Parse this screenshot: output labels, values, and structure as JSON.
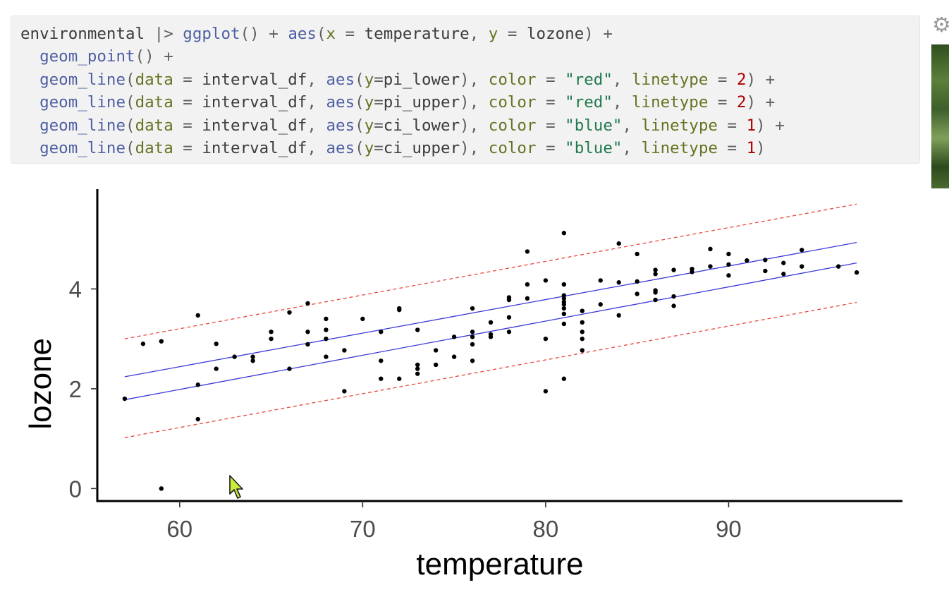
{
  "code": {
    "lines": [
      [
        [
          "environmental",
          "id"
        ],
        [
          " |> ",
          "op"
        ],
        [
          "ggplot",
          "fn"
        ],
        [
          "() + ",
          "op"
        ],
        [
          "aes",
          "fn"
        ],
        [
          "(",
          "op"
        ],
        [
          "x",
          "arg"
        ],
        [
          " = ",
          "op"
        ],
        [
          "temperature",
          "id"
        ],
        [
          ", ",
          "op"
        ],
        [
          "y",
          "arg"
        ],
        [
          " = ",
          "op"
        ],
        [
          "lozone",
          "id"
        ],
        [
          ") +",
          "op"
        ]
      ],
      [
        [
          "  ",
          "id"
        ],
        [
          "geom_point",
          "fn"
        ],
        [
          "() +",
          "op"
        ]
      ],
      [
        [
          "  ",
          "id"
        ],
        [
          "geom_line",
          "fn"
        ],
        [
          "(",
          "op"
        ],
        [
          "data",
          "arg"
        ],
        [
          " = ",
          "op"
        ],
        [
          "interval_df",
          "id"
        ],
        [
          ", ",
          "op"
        ],
        [
          "aes",
          "fn"
        ],
        [
          "(",
          "op"
        ],
        [
          "y",
          "arg"
        ],
        [
          "=",
          "op"
        ],
        [
          "pi_lower",
          "id"
        ],
        [
          "), ",
          "op"
        ],
        [
          "color",
          "arg"
        ],
        [
          " = ",
          "op"
        ],
        [
          "\"red\"",
          "str"
        ],
        [
          ", ",
          "op"
        ],
        [
          "linetype",
          "arg"
        ],
        [
          " = ",
          "op"
        ],
        [
          "2",
          "num"
        ],
        [
          ") +",
          "op"
        ]
      ],
      [
        [
          "  ",
          "id"
        ],
        [
          "geom_line",
          "fn"
        ],
        [
          "(",
          "op"
        ],
        [
          "data",
          "arg"
        ],
        [
          " = ",
          "op"
        ],
        [
          "interval_df",
          "id"
        ],
        [
          ", ",
          "op"
        ],
        [
          "aes",
          "fn"
        ],
        [
          "(",
          "op"
        ],
        [
          "y",
          "arg"
        ],
        [
          "=",
          "op"
        ],
        [
          "pi_upper",
          "id"
        ],
        [
          "), ",
          "op"
        ],
        [
          "color",
          "arg"
        ],
        [
          " = ",
          "op"
        ],
        [
          "\"red\"",
          "str"
        ],
        [
          ", ",
          "op"
        ],
        [
          "linetype",
          "arg"
        ],
        [
          " = ",
          "op"
        ],
        [
          "2",
          "num"
        ],
        [
          ") +",
          "op"
        ]
      ],
      [
        [
          "  ",
          "id"
        ],
        [
          "geom_line",
          "fn"
        ],
        [
          "(",
          "op"
        ],
        [
          "data",
          "arg"
        ],
        [
          " = ",
          "op"
        ],
        [
          "interval_df",
          "id"
        ],
        [
          ", ",
          "op"
        ],
        [
          "aes",
          "fn"
        ],
        [
          "(",
          "op"
        ],
        [
          "y",
          "arg"
        ],
        [
          "=",
          "op"
        ],
        [
          "ci_lower",
          "id"
        ],
        [
          "), ",
          "op"
        ],
        [
          "color",
          "arg"
        ],
        [
          " = ",
          "op"
        ],
        [
          "\"blue\"",
          "str"
        ],
        [
          ", ",
          "op"
        ],
        [
          "linetype",
          "arg"
        ],
        [
          " = ",
          "op"
        ],
        [
          "1",
          "num"
        ],
        [
          ") +",
          "op"
        ]
      ],
      [
        [
          "  ",
          "id"
        ],
        [
          "geom_line",
          "fn"
        ],
        [
          "(",
          "op"
        ],
        [
          "data",
          "arg"
        ],
        [
          " = ",
          "op"
        ],
        [
          "interval_df",
          "id"
        ],
        [
          ", ",
          "op"
        ],
        [
          "aes",
          "fn"
        ],
        [
          "(",
          "op"
        ],
        [
          "y",
          "arg"
        ],
        [
          "=",
          "op"
        ],
        [
          "ci_upper",
          "id"
        ],
        [
          "), ",
          "op"
        ],
        [
          "color",
          "arg"
        ],
        [
          " = ",
          "op"
        ],
        [
          "\"blue\"",
          "str"
        ],
        [
          ", ",
          "op"
        ],
        [
          "linetype",
          "arg"
        ],
        [
          " = ",
          "op"
        ],
        [
          "1",
          "num"
        ],
        [
          ")",
          "op"
        ]
      ]
    ]
  },
  "chart_data": {
    "type": "scatter",
    "xlabel": "temperature",
    "ylabel": "lozone",
    "xlim": [
      55.5,
      99.5
    ],
    "ylim": [
      -0.25,
      6.0
    ],
    "xticks": [
      60,
      70,
      80,
      90
    ],
    "yticks": [
      0,
      2,
      4
    ],
    "grid": false,
    "points": [
      [
        57,
        1.8
      ],
      [
        58,
        2.9
      ],
      [
        59,
        2.95
      ],
      [
        59,
        0.0
      ],
      [
        61,
        3.47
      ],
      [
        61,
        2.08
      ],
      [
        61,
        1.39
      ],
      [
        62,
        2.9
      ],
      [
        62,
        2.4
      ],
      [
        63,
        2.64
      ],
      [
        64,
        2.64
      ],
      [
        64,
        2.56
      ],
      [
        65,
        3.14
      ],
      [
        65,
        3.0
      ],
      [
        66,
        3.53
      ],
      [
        66,
        2.4
      ],
      [
        67,
        3.71
      ],
      [
        67,
        3.14
      ],
      [
        67,
        2.89
      ],
      [
        68,
        3.4
      ],
      [
        68,
        3.18
      ],
      [
        68,
        3.0
      ],
      [
        68,
        2.64
      ],
      [
        69,
        2.77
      ],
      [
        69,
        1.95
      ],
      [
        70,
        3.4
      ],
      [
        71,
        3.14
      ],
      [
        71,
        2.56
      ],
      [
        71,
        2.2
      ],
      [
        72,
        3.61
      ],
      [
        72,
        3.58
      ],
      [
        72,
        2.2
      ],
      [
        73,
        3.18
      ],
      [
        73,
        2.48
      ],
      [
        73,
        2.4
      ],
      [
        73,
        2.3
      ],
      [
        74,
        2.77
      ],
      [
        74,
        2.48
      ],
      [
        75,
        3.04
      ],
      [
        75,
        2.64
      ],
      [
        76,
        3.61
      ],
      [
        76,
        3.14
      ],
      [
        76,
        3.04
      ],
      [
        76,
        2.89
      ],
      [
        76,
        2.56
      ],
      [
        77,
        3.33
      ],
      [
        77,
        3.09
      ],
      [
        77,
        3.04
      ],
      [
        78,
        3.83
      ],
      [
        78,
        3.78
      ],
      [
        78,
        3.43
      ],
      [
        78,
        3.14
      ],
      [
        79,
        4.75
      ],
      [
        79,
        4.09
      ],
      [
        79,
        3.81
      ],
      [
        80,
        4.17
      ],
      [
        80,
        3.0
      ],
      [
        80,
        1.95
      ],
      [
        81,
        5.12
      ],
      [
        81,
        4.09
      ],
      [
        81,
        3.87
      ],
      [
        81,
        3.81
      ],
      [
        81,
        3.74
      ],
      [
        81,
        3.69
      ],
      [
        81,
        3.61
      ],
      [
        81,
        3.5
      ],
      [
        81,
        3.3
      ],
      [
        81,
        2.2
      ],
      [
        82,
        3.56
      ],
      [
        82,
        3.33
      ],
      [
        82,
        3.14
      ],
      [
        82,
        3.0
      ],
      [
        82,
        2.77
      ],
      [
        83,
        4.17
      ],
      [
        83,
        3.69
      ],
      [
        84,
        4.91
      ],
      [
        84,
        4.13
      ],
      [
        84,
        3.47
      ],
      [
        85,
        4.7
      ],
      [
        85,
        4.15
      ],
      [
        85,
        3.9
      ],
      [
        86,
        4.38
      ],
      [
        86,
        4.3
      ],
      [
        86,
        3.97
      ],
      [
        86,
        3.93
      ],
      [
        86,
        3.78
      ],
      [
        87,
        4.38
      ],
      [
        87,
        3.85
      ],
      [
        87,
        3.66
      ],
      [
        88,
        4.4
      ],
      [
        88,
        4.34
      ],
      [
        89,
        4.8
      ],
      [
        89,
        4.45
      ],
      [
        90,
        4.7
      ],
      [
        90,
        4.49
      ],
      [
        90,
        4.27
      ],
      [
        91,
        4.57
      ],
      [
        92,
        4.58
      ],
      [
        92,
        4.36
      ],
      [
        93,
        4.52
      ],
      [
        93,
        4.3
      ],
      [
        94,
        4.78
      ],
      [
        94,
        4.45
      ],
      [
        96,
        4.45
      ],
      [
        97,
        4.33
      ]
    ],
    "series": [
      {
        "name": "pi_lower",
        "color": "#e8463a",
        "linetype": 2,
        "x": [
          57,
          97
        ],
        "values": [
          1.02,
          3.73
        ]
      },
      {
        "name": "pi_upper",
        "color": "#e8463a",
        "linetype": 2,
        "x": [
          57,
          97
        ],
        "values": [
          3.0,
          5.7
        ]
      },
      {
        "name": "ci_lower",
        "color": "#3a3ad8",
        "linetype": 1,
        "x": [
          57,
          97
        ],
        "values": [
          1.78,
          4.52
        ]
      },
      {
        "name": "ci_upper",
        "color": "#3a3ad8",
        "linetype": 1,
        "x": [
          57,
          97
        ],
        "values": [
          2.24,
          4.93
        ]
      }
    ]
  }
}
